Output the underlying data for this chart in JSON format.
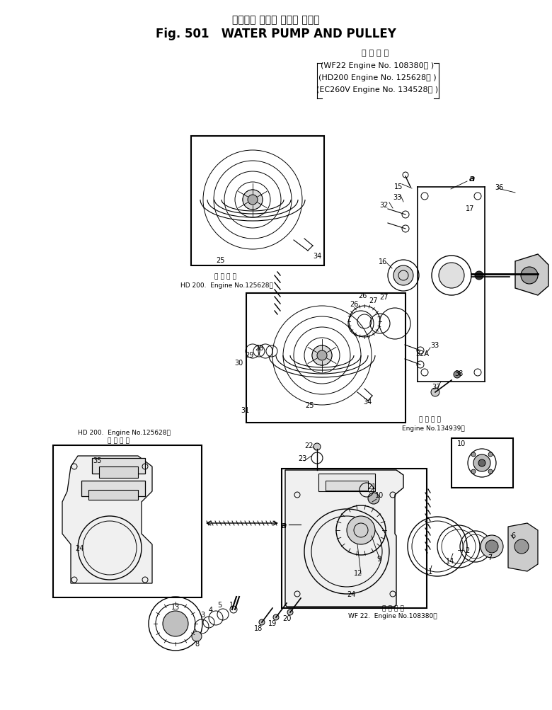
{
  "title_jp": "ウオータ ポンプ および プーリ",
  "title_en": "Fig. 501   WATER PUMP AND PULLEY",
  "applicability_jp": "適 用 号 機",
  "applicability_lines": [
    "(WF22 Engine No. 108380＾ )",
    "(HD200 Engine No. 125628＾ )",
    "(EC260V Engine No. 134528＾ )"
  ],
  "bg_color": "#ffffff",
  "line_color": "#000000",
  "text_color": "#000000"
}
